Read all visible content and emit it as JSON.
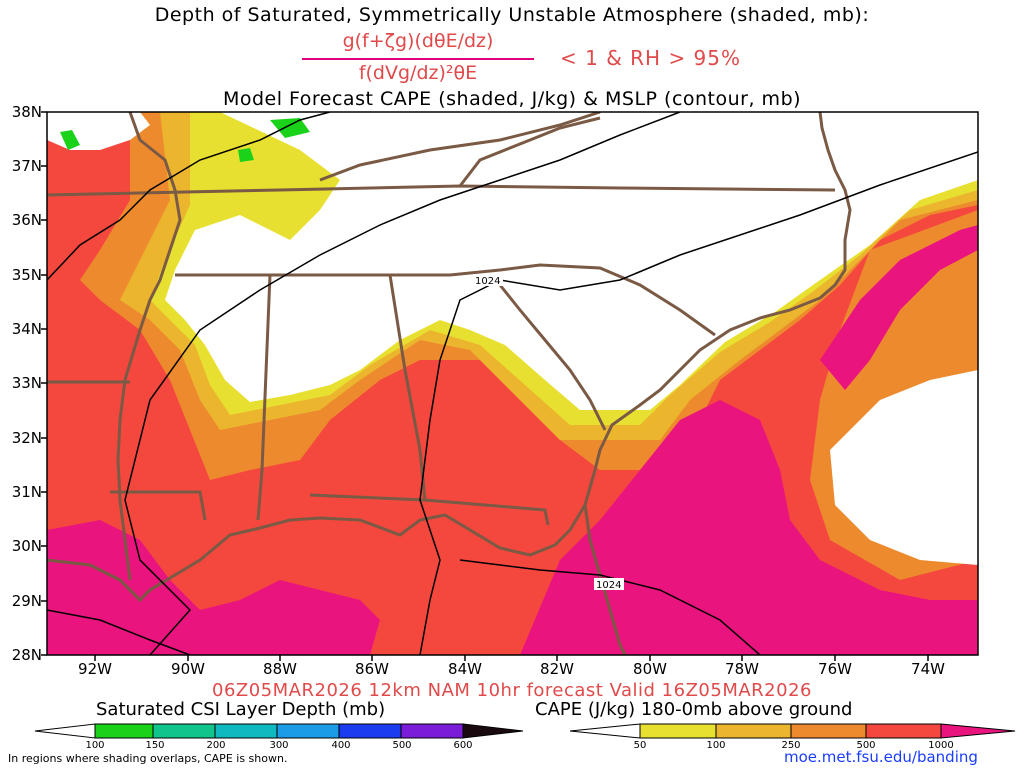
{
  "titles": {
    "line1": "Depth of Saturated, Symmetrically Unstable Atmosphere (shaded, mb):",
    "numerator": "g(f+ζg)(dθE/dz)",
    "denominator": "f(dVg/dz)²θE",
    "condition": "< 1 & RH > 95%",
    "line3": "Model Forecast CAPE (shaded, J/kg) & MSLP (contour, mb)",
    "valid": "06Z05MAR2026 12km NAM 10hr forecast Valid 16Z05MAR2026"
  },
  "map": {
    "lat_labels": [
      "38N",
      "37N",
      "36N",
      "35N",
      "34N",
      "33N",
      "32N",
      "31N",
      "30N",
      "29N",
      "28N"
    ],
    "lon_labels": [
      "92W",
      "90W",
      "88W",
      "86W",
      "84W",
      "82W",
      "80W",
      "78W",
      "76W",
      "74W"
    ],
    "isobar_labels": [
      "1024",
      "1024"
    ],
    "colors": {
      "cape_50": "#e8e030",
      "cape_100": "#ebb52e",
      "cape_250": "#ee8a2e",
      "cape_500": "#f4483e",
      "cape_1000": "#ea147f",
      "coast": "#7a5a44",
      "isobar": "#000000"
    }
  },
  "legend_csi": {
    "title": "Saturated CSI Layer Depth (mb)",
    "ticks": [
      "100",
      "150",
      "200",
      "300",
      "400",
      "500",
      "600"
    ],
    "colors": [
      "#ffffff",
      "#19d219",
      "#10c48c",
      "#10b8c0",
      "#1c9ce4",
      "#1c3cf0",
      "#7a1cd8",
      "#1a0a10"
    ]
  },
  "legend_cape": {
    "title": "CAPE (J/kg) 180-0mb above ground",
    "ticks": [
      "50",
      "100",
      "250",
      "500",
      "1000"
    ],
    "colors": [
      "#ffffff",
      "#e8e030",
      "#ebb52e",
      "#ee8a2e",
      "#f4483e",
      "#ea147f"
    ]
  },
  "footer": {
    "note": "In regions where shading overlaps, CAPE is shown.",
    "url": "moe.met.fsu.edu/banding"
  }
}
